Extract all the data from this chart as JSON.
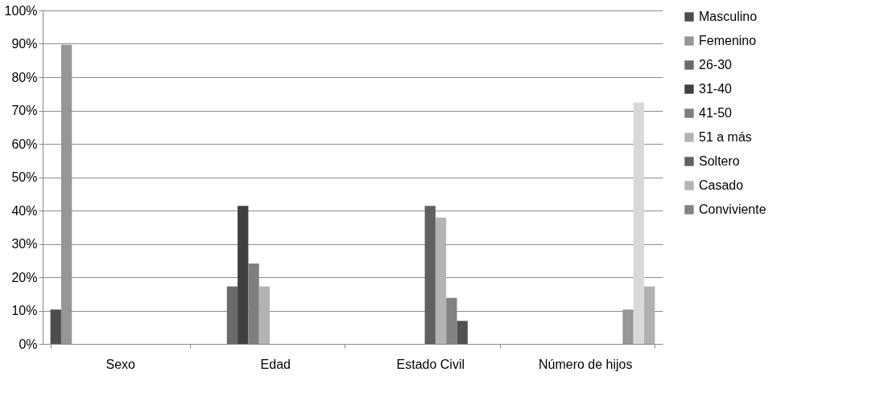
{
  "chart_data": {
    "type": "bar",
    "categories": [
      "Sexo",
      "Edad",
      "Estado Civil",
      "Número de hijos"
    ],
    "series": [
      {
        "name": "Masculino",
        "color": "#4d4d4d",
        "values": [
          10.3,
          null,
          null,
          null
        ]
      },
      {
        "name": "Femenino",
        "color": "#969696",
        "values": [
          89.7,
          null,
          null,
          null
        ]
      },
      {
        "name": "26-30",
        "color": "#6b6b6b",
        "values": [
          null,
          17.2,
          null,
          null
        ]
      },
      {
        "name": "31-40",
        "color": "#404040",
        "values": [
          null,
          41.4,
          null,
          null
        ]
      },
      {
        "name": "41-50",
        "color": "#7f7f7f",
        "values": [
          null,
          24.1,
          null,
          null
        ]
      },
      {
        "name": "51 a más",
        "color": "#b3b3b3",
        "values": [
          null,
          17.2,
          null,
          null
        ]
      },
      {
        "name": "Soltero",
        "color": "#616161",
        "values": [
          null,
          null,
          41.4,
          null
        ]
      },
      {
        "name": "Casado",
        "color": "#b4b4b4",
        "values": [
          null,
          null,
          37.9,
          null
        ]
      },
      {
        "name": "Conviviente",
        "color": "#828282",
        "values": [
          null,
          null,
          13.8,
          null
        ]
      },
      {
        "color": "#525252",
        "values": [
          null,
          null,
          6.9,
          null
        ]
      },
      {
        "color": "#979797",
        "values": [
          null,
          null,
          null,
          10.3
        ]
      },
      {
        "color": "#d9d9d9",
        "values": [
          null,
          null,
          null,
          72.4
        ]
      },
      {
        "color": "#b0b0b0",
        "values": [
          null,
          null,
          null,
          17.2
        ]
      }
    ],
    "ylim": [
      0,
      100
    ],
    "yticks": [
      {
        "value": 0,
        "label": "0%"
      },
      {
        "value": 10,
        "label": "10%"
      },
      {
        "value": 20,
        "label": "20%"
      },
      {
        "value": 30,
        "label": "30%"
      },
      {
        "value": 40,
        "label": "40%"
      },
      {
        "value": 50,
        "label": "50%"
      },
      {
        "value": 60,
        "label": "60%"
      },
      {
        "value": 70,
        "label": "70%"
      },
      {
        "value": 80,
        "label": "80%"
      },
      {
        "value": 90,
        "label": "90%"
      },
      {
        "value": 100,
        "label": "100%"
      }
    ],
    "grid": "y",
    "legend": "right"
  }
}
